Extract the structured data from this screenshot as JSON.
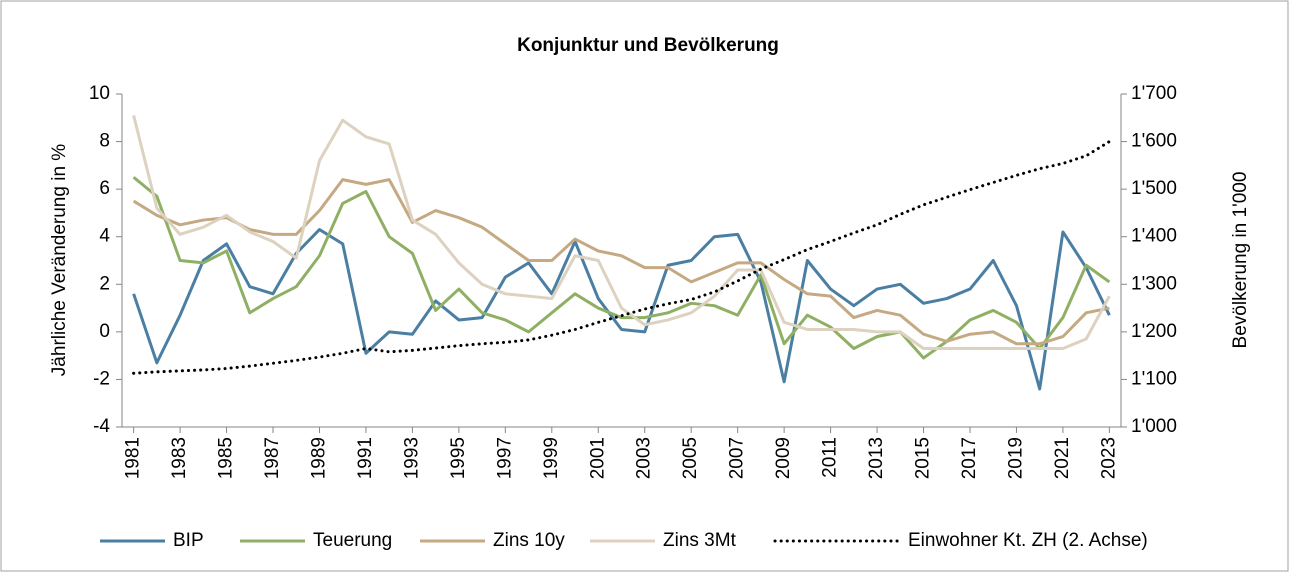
{
  "chart_data": {
    "type": "line",
    "title": "Konjunktur und Bevölkerung",
    "y_label": "Jährliche Veränderung in %",
    "y2_label": "Bevölkerung in 1'000",
    "x": [
      1981,
      1982,
      1983,
      1984,
      1985,
      1986,
      1987,
      1988,
      1989,
      1990,
      1991,
      1992,
      1993,
      1994,
      1995,
      1996,
      1997,
      1998,
      1999,
      2000,
      2001,
      2002,
      2003,
      2004,
      2005,
      2006,
      2007,
      2008,
      2009,
      2010,
      2011,
      2012,
      2013,
      2014,
      2015,
      2016,
      2017,
      2018,
      2019,
      2020,
      2021,
      2022,
      2023
    ],
    "xlim": [
      1980.5,
      2023.5
    ],
    "xticks": [
      1981,
      1983,
      1985,
      1987,
      1989,
      1991,
      1993,
      1995,
      1997,
      1999,
      2001,
      2003,
      2005,
      2007,
      2009,
      2011,
      2013,
      2015,
      2017,
      2019,
      2021,
      2023
    ],
    "ylim": [
      -4,
      10
    ],
    "yticks": [
      -4,
      -2,
      0,
      2,
      4,
      6,
      8,
      10
    ],
    "y2lim": [
      1000,
      1700
    ],
    "y2ticks": [
      {
        "value": 1000,
        "label": "1'000"
      },
      {
        "value": 1100,
        "label": "1'100"
      },
      {
        "value": 1200,
        "label": "1'200"
      },
      {
        "value": 1300,
        "label": "1'300"
      },
      {
        "value": 1400,
        "label": "1'400"
      },
      {
        "value": 1500,
        "label": "1'500"
      },
      {
        "value": 1600,
        "label": "1'600"
      },
      {
        "value": 1700,
        "label": "1'700"
      }
    ],
    "grid": false,
    "legend": "bottom",
    "series": [
      {
        "name": "BIP",
        "color": "#4a7ea3",
        "values": [
          1.6,
          -1.3,
          0.7,
          3.0,
          3.7,
          1.9,
          1.6,
          3.3,
          4.3,
          3.7,
          -0.9,
          0.0,
          -0.1,
          1.3,
          0.5,
          0.6,
          2.3,
          2.9,
          1.6,
          3.8,
          1.4,
          0.1,
          0.0,
          2.8,
          3.0,
          4.0,
          4.1,
          2.1,
          -2.1,
          3.0,
          1.8,
          1.1,
          1.8,
          2.0,
          1.2,
          1.4,
          1.8,
          3.0,
          1.1,
          -2.4,
          4.2,
          2.7,
          0.7
        ]
      },
      {
        "name": "Teuerung",
        "color": "#8fb064",
        "values": [
          6.5,
          5.7,
          3.0,
          2.9,
          3.4,
          0.8,
          1.4,
          1.9,
          3.2,
          5.4,
          5.9,
          4.0,
          3.3,
          0.9,
          1.8,
          0.8,
          0.5,
          0.0,
          0.8,
          1.6,
          1.0,
          0.6,
          0.6,
          0.8,
          1.2,
          1.1,
          0.7,
          2.4,
          -0.5,
          0.7,
          0.2,
          -0.7,
          -0.2,
          0.0,
          -1.1,
          -0.4,
          0.5,
          0.9,
          0.4,
          -0.7,
          0.6,
          2.8,
          2.1
        ]
      },
      {
        "name": "Zins 10y",
        "color": "#c4a982",
        "values": [
          5.5,
          4.9,
          4.5,
          4.7,
          4.8,
          4.3,
          4.1,
          4.1,
          5.1,
          6.4,
          6.2,
          6.4,
          4.6,
          5.1,
          4.8,
          4.4,
          3.7,
          3.0,
          3.0,
          3.9,
          3.4,
          3.2,
          2.7,
          2.7,
          2.1,
          2.5,
          2.9,
          2.9,
          2.2,
          1.6,
          1.5,
          0.6,
          0.9,
          0.7,
          -0.1,
          -0.4,
          -0.1,
          0.0,
          -0.5,
          -0.5,
          -0.2,
          0.8,
          1.0
        ]
      },
      {
        "name": "Zins 3Mt",
        "color": "#ddd2bf",
        "values": [
          9.1,
          5.2,
          4.1,
          4.4,
          4.9,
          4.2,
          3.8,
          3.1,
          7.2,
          8.9,
          8.2,
          7.9,
          4.7,
          4.1,
          2.9,
          2.0,
          1.6,
          1.5,
          1.4,
          3.2,
          3.0,
          1.0,
          0.3,
          0.5,
          0.8,
          1.5,
          2.6,
          2.6,
          0.4,
          0.1,
          0.1,
          0.1,
          0.0,
          0.0,
          -0.7,
          -0.7,
          -0.7,
          -0.7,
          -0.7,
          -0.7,
          -0.7,
          -0.3,
          1.5
        ]
      },
      {
        "name": "Einwohner Kt. ZH (2. Achse)",
        "color": "#000000",
        "axis": "y2",
        "dotted": true,
        "values": [
          1113,
          1116,
          1118,
          1120,
          1123,
          1128,
          1134,
          1140,
          1147,
          1155,
          1165,
          1158,
          1161,
          1166,
          1171,
          1175,
          1178,
          1183,
          1193,
          1205,
          1220,
          1234,
          1248,
          1259,
          1268,
          1284,
          1307,
          1332,
          1352,
          1373,
          1390,
          1408,
          1425,
          1447,
          1467,
          1483,
          1499,
          1514,
          1529,
          1543,
          1554,
          1570,
          1600
        ]
      }
    ]
  }
}
